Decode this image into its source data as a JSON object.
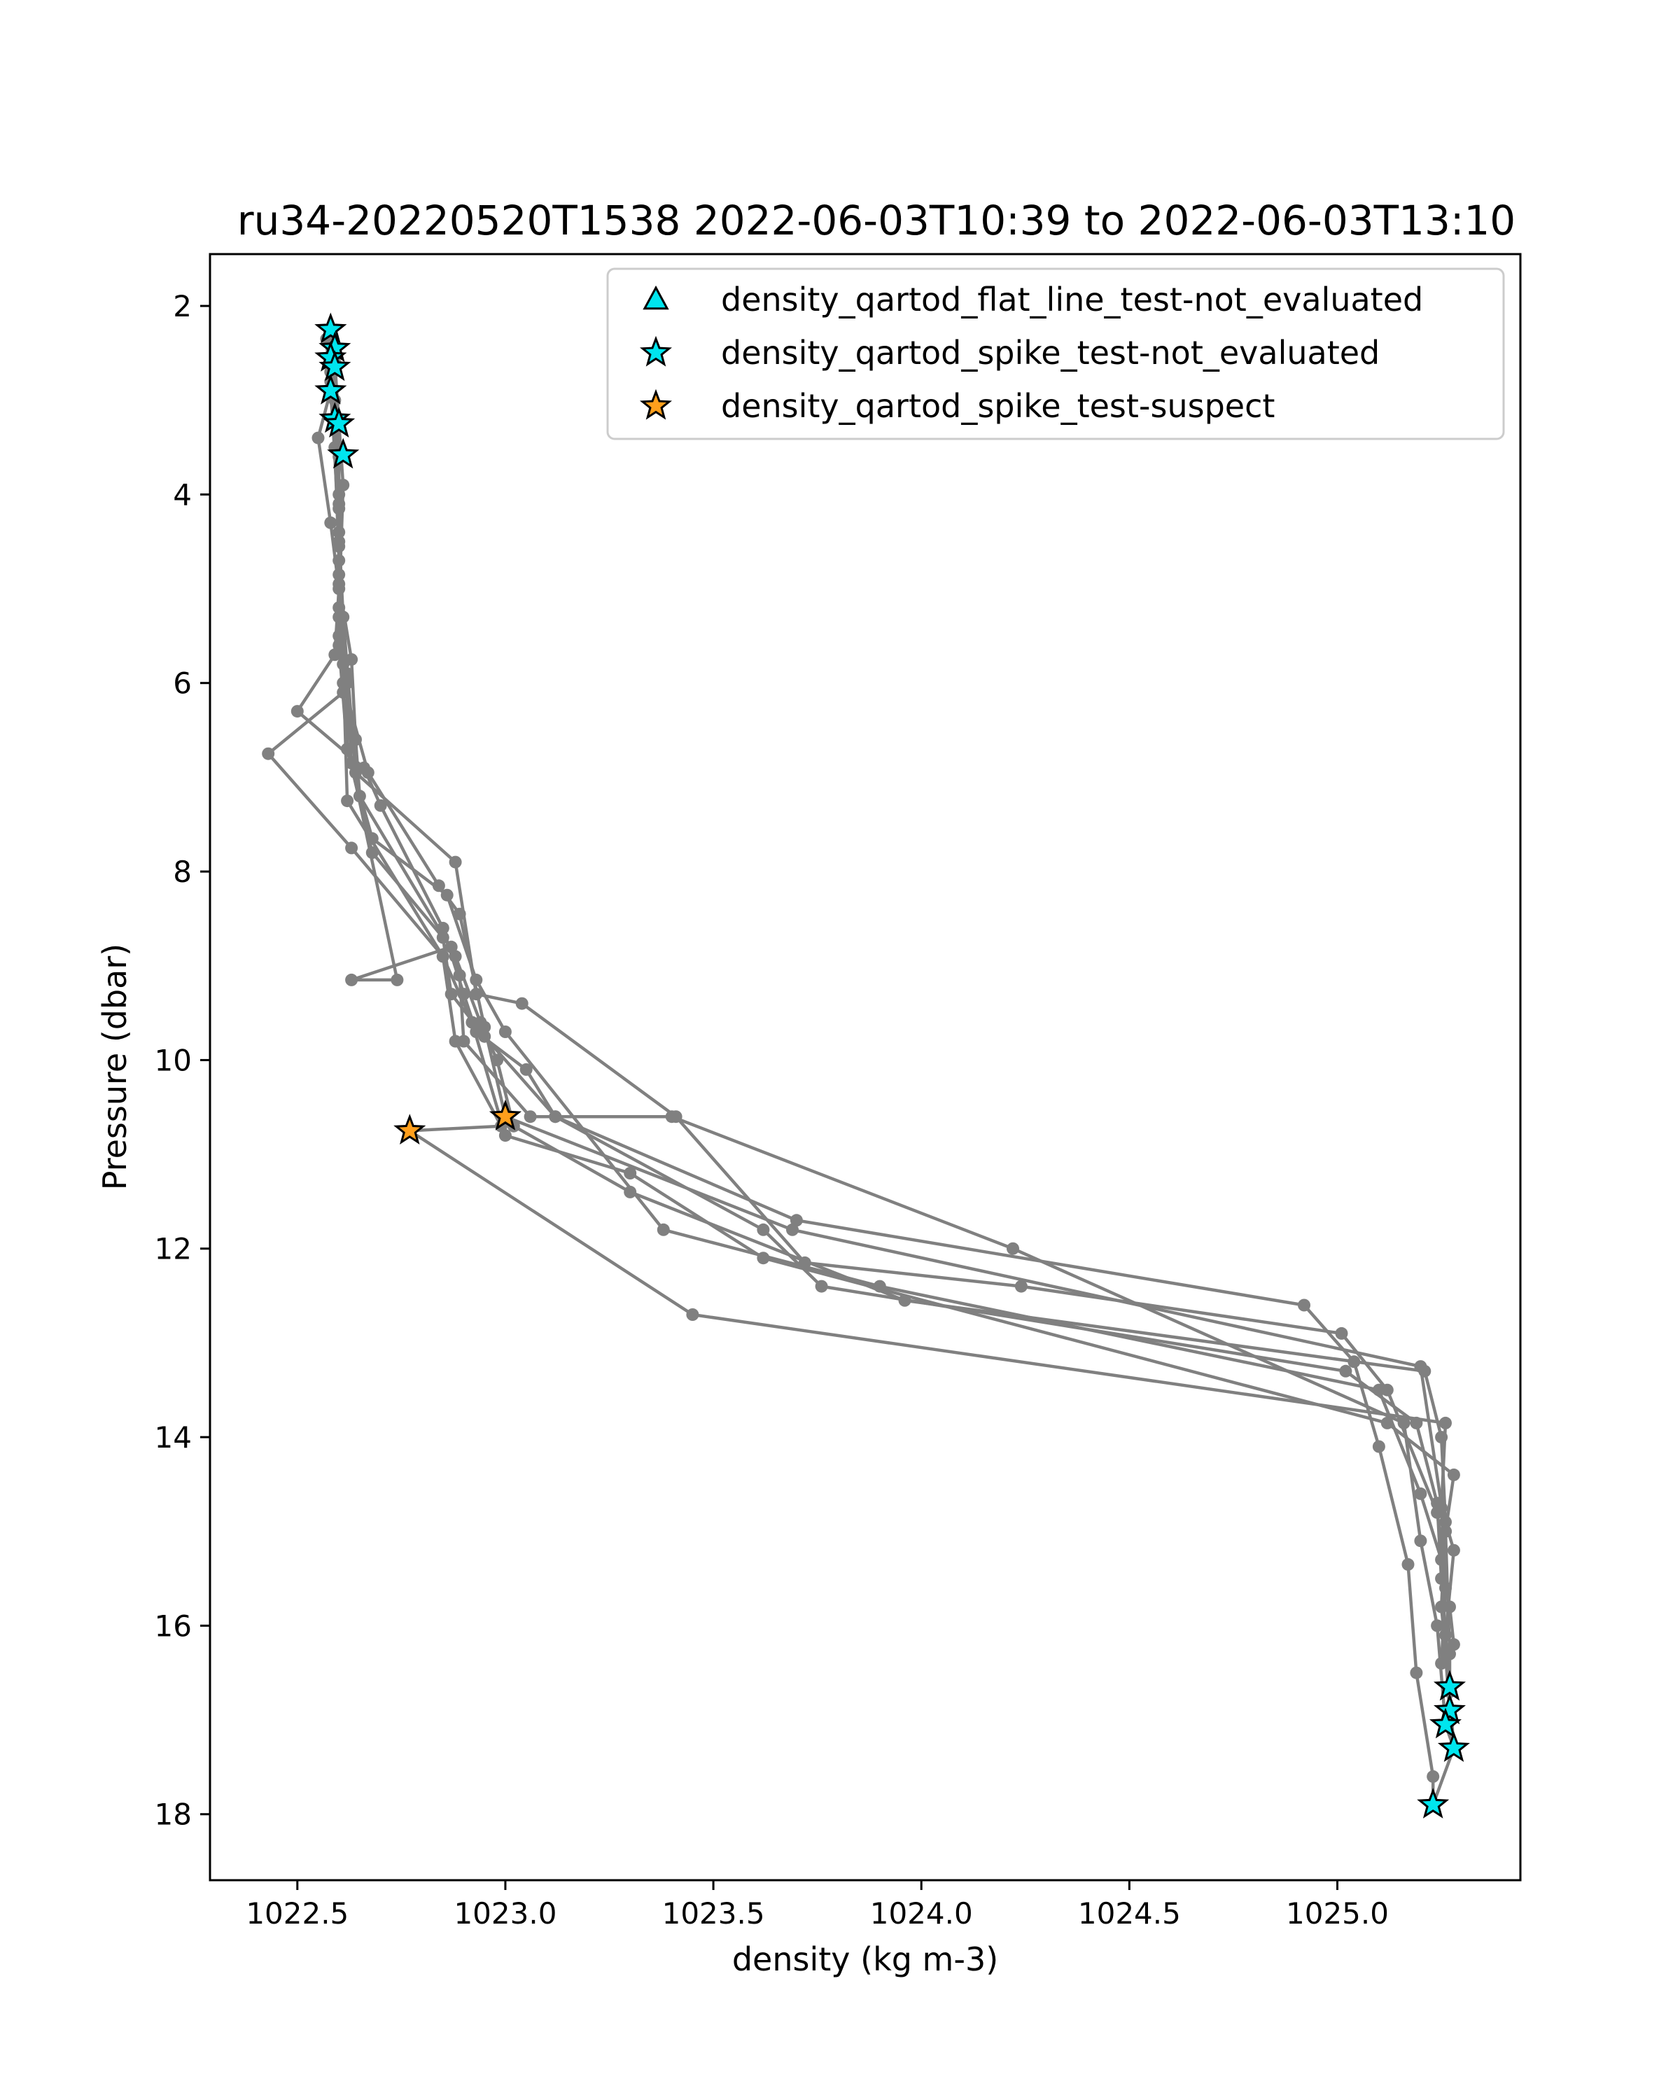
{
  "chart_data": {
    "type": "line",
    "title": "ru34-20220520T1538 2022-06-03T10:39 to 2022-06-03T13:10",
    "xlabel": "density (kg m-3)",
    "ylabel": "Pressure (dbar)",
    "xlim": [
      1022.29,
      1025.44
    ],
    "ylim": [
      18.7,
      1.45
    ],
    "y_inverted": true,
    "xticks": [
      1022.5,
      1023.0,
      1023.5,
      1024.0,
      1024.5,
      1025.0
    ],
    "xtick_labels": [
      "1022.5",
      "1023.0",
      "1023.5",
      "1024.0",
      "1024.5",
      "1025.0"
    ],
    "yticks": [
      2,
      4,
      6,
      8,
      10,
      12,
      14,
      16,
      18
    ],
    "ytick_labels": [
      "2",
      "4",
      "6",
      "8",
      "10",
      "12",
      "14",
      "16",
      "18"
    ],
    "grid": false,
    "legend_placement": "top-right",
    "colors": {
      "profile_line": "#808080",
      "not_evaluated": "#00e5ee",
      "suspect": "#ff9f1c",
      "marker_edge": "#000000"
    },
    "series": [
      {
        "type": "line",
        "points": [
          [
            1022.58,
            2.25
          ],
          [
            1022.58,
            2.9
          ],
          [
            1022.55,
            3.4
          ],
          [
            1022.58,
            4.3
          ],
          [
            1022.6,
            5.0
          ],
          [
            1022.59,
            5.7
          ],
          [
            1022.5,
            6.3
          ],
          [
            1022.66,
            6.9
          ],
          [
            1022.7,
            7.3
          ],
          [
            1022.85,
            8.6
          ],
          [
            1022.9,
            9.3
          ],
          [
            1022.93,
            9.7
          ],
          [
            1023.05,
            10.1
          ],
          [
            1023.12,
            10.6
          ],
          [
            1023.62,
            11.8
          ],
          [
            1023.76,
            12.4
          ],
          [
            1025.02,
            13.3
          ],
          [
            1025.19,
            13.85
          ],
          [
            1025.24,
            14.7
          ],
          [
            1025.25,
            15.5
          ],
          [
            1025.27,
            16.7
          ],
          [
            1025.27,
            16.9
          ],
          [
            1025.26,
            17.05
          ],
          [
            1025.28,
            17.3
          ],
          [
            1025.23,
            17.9
          ]
        ]
      },
      {
        "type": "line",
        "points": [
          [
            1022.59,
            2.5
          ],
          [
            1022.6,
            3.6
          ],
          [
            1022.6,
            4.5
          ],
          [
            1022.6,
            5.3
          ],
          [
            1022.61,
            6.1
          ],
          [
            1022.43,
            6.75
          ],
          [
            1022.63,
            7.75
          ],
          [
            1022.85,
            8.9
          ],
          [
            1022.92,
            9.6
          ],
          [
            1023.0,
            10.8
          ],
          [
            1023.3,
            11.2
          ],
          [
            1023.62,
            12.1
          ],
          [
            1025.12,
            13.85
          ],
          [
            1025.28,
            14.4
          ],
          [
            1025.26,
            15.0
          ],
          [
            1025.25,
            15.8
          ],
          [
            1025.27,
            16.7
          ]
        ]
      },
      {
        "type": "line",
        "points": [
          [
            1022.58,
            2.7
          ],
          [
            1022.6,
            4.0
          ],
          [
            1022.6,
            4.85
          ],
          [
            1022.62,
            5.9
          ],
          [
            1022.62,
            6.7
          ],
          [
            1022.68,
            7.65
          ],
          [
            1022.86,
            8.25
          ],
          [
            1022.93,
            9.15
          ],
          [
            1023.0,
            9.7
          ],
          [
            1023.38,
            11.8
          ],
          [
            1023.9,
            12.4
          ],
          [
            1025.1,
            13.5
          ],
          [
            1025.2,
            14.6
          ],
          [
            1025.25,
            15.3
          ],
          [
            1025.26,
            16.3
          ],
          [
            1025.27,
            16.9
          ]
        ]
      },
      {
        "type": "line",
        "points": [
          [
            1022.59,
            3.0
          ],
          [
            1022.6,
            4.55
          ],
          [
            1022.6,
            5.5
          ],
          [
            1022.62,
            6.0
          ],
          [
            1022.63,
            6.85
          ],
          [
            1022.74,
            9.15
          ],
          [
            1022.63,
            9.15
          ],
          [
            1022.87,
            8.8
          ],
          [
            1022.89,
            9.1
          ],
          [
            1022.9,
            9.8
          ],
          [
            1023.06,
            10.6
          ],
          [
            1023.4,
            10.6
          ],
          [
            1024.22,
            12.0
          ],
          [
            1025.16,
            13.85
          ],
          [
            1025.2,
            15.1
          ],
          [
            1025.24,
            16.0
          ],
          [
            1025.26,
            17.05
          ]
        ]
      },
      {
        "type": "line",
        "points": [
          [
            1022.6,
            3.25
          ],
          [
            1022.6,
            4.15
          ],
          [
            1022.6,
            4.95
          ],
          [
            1022.63,
            5.75
          ],
          [
            1022.64,
            6.6
          ],
          [
            1022.65,
            7.2
          ],
          [
            1022.88,
            8.9
          ],
          [
            1022.94,
            9.6
          ],
          [
            1022.98,
            10.0
          ],
          [
            1023.02,
            10.7
          ],
          [
            1023.3,
            11.4
          ],
          [
            1023.96,
            12.55
          ],
          [
            1025.21,
            13.3
          ],
          [
            1025.25,
            14.0
          ],
          [
            1025.26,
            14.9
          ],
          [
            1025.28,
            15.2
          ],
          [
            1025.26,
            16.1
          ],
          [
            1025.28,
            17.3
          ]
        ]
      },
      {
        "type": "line",
        "points": [
          [
            1022.59,
            2.6
          ],
          [
            1022.61,
            3.9
          ],
          [
            1022.6,
            5.2
          ],
          [
            1022.61,
            6.0
          ],
          [
            1022.67,
            6.95
          ],
          [
            1022.84,
            8.15
          ],
          [
            1022.89,
            8.45
          ],
          [
            1022.95,
            9.65
          ],
          [
            1023.0,
            10.6
          ],
          [
            1023.69,
            11.8
          ],
          [
            1025.2,
            13.25
          ],
          [
            1025.26,
            15.0
          ],
          [
            1025.27,
            16.3
          ],
          [
            1025.27,
            16.65
          ]
        ]
      },
      {
        "type": "line",
        "points": [
          [
            1022.57,
            2.35
          ],
          [
            1022.59,
            3.5
          ],
          [
            1022.6,
            4.7
          ],
          [
            1022.6,
            5.6
          ],
          [
            1022.62,
            6.7
          ],
          [
            1022.68,
            7.8
          ],
          [
            1022.85,
            8.7
          ],
          [
            1022.87,
            9.3
          ],
          [
            1022.95,
            9.75
          ],
          [
            1023.12,
            10.6
          ],
          [
            1023.7,
            11.7
          ],
          [
            1024.92,
            12.6
          ],
          [
            1025.04,
            13.2
          ],
          [
            1025.1,
            14.1
          ],
          [
            1025.17,
            15.35
          ],
          [
            1025.19,
            16.5
          ],
          [
            1025.23,
            17.6
          ],
          [
            1025.23,
            17.9
          ]
        ]
      },
      {
        "type": "line",
        "points": [
          [
            1022.58,
            2.8
          ],
          [
            1022.6,
            4.4
          ],
          [
            1022.61,
            5.3
          ],
          [
            1022.64,
            6.95
          ],
          [
            1022.88,
            7.9
          ],
          [
            1022.93,
            9.3
          ],
          [
            1023.04,
            9.4
          ],
          [
            1023.41,
            10.6
          ],
          [
            1023.72,
            12.15
          ],
          [
            1024.24,
            12.4
          ],
          [
            1025.01,
            12.9
          ],
          [
            1025.12,
            13.5
          ],
          [
            1025.24,
            14.8
          ],
          [
            1025.27,
            15.8
          ],
          [
            1025.28,
            16.2
          ]
        ]
      },
      {
        "type": "line",
        "points": [
          [
            1022.58,
            2.55
          ],
          [
            1022.6,
            4.1
          ],
          [
            1022.61,
            5.8
          ],
          [
            1022.62,
            7.25
          ],
          [
            1022.85,
            8.9
          ],
          [
            1022.88,
            9.8
          ],
          [
            1022.99,
            10.7
          ],
          [
            1022.77,
            10.75
          ],
          [
            1023.45,
            12.7
          ],
          [
            1025.26,
            13.85
          ],
          [
            1025.25,
            14.75
          ],
          [
            1025.26,
            15.6
          ],
          [
            1025.25,
            16.4
          ]
        ]
      }
    ],
    "markers": {
      "density_qartod_spike_test-not_evaluated": [
        [
          1022.58,
          2.25
        ],
        [
          1022.59,
          2.45
        ],
        [
          1022.58,
          2.55
        ],
        [
          1022.59,
          2.65
        ],
        [
          1022.58,
          2.9
        ],
        [
          1022.59,
          3.2
        ],
        [
          1022.6,
          3.25
        ],
        [
          1022.61,
          3.58
        ],
        [
          1025.27,
          16.65
        ],
        [
          1025.27,
          16.9
        ],
        [
          1025.26,
          17.05
        ],
        [
          1025.28,
          17.3
        ],
        [
          1025.23,
          17.9
        ]
      ],
      "density_qartod_spike_test-suspect": [
        [
          1022.77,
          10.75
        ],
        [
          1023.0,
          10.6
        ]
      ]
    },
    "legend": [
      {
        "label": "density_qartod_flat_line_test-not_evaluated",
        "marker": "triangle",
        "color": "#00e5ee"
      },
      {
        "label": "density_qartod_spike_test-not_evaluated",
        "marker": "star",
        "color": "#00e5ee"
      },
      {
        "label": "density_qartod_spike_test-suspect",
        "marker": "star",
        "color": "#ff9f1c"
      }
    ]
  }
}
